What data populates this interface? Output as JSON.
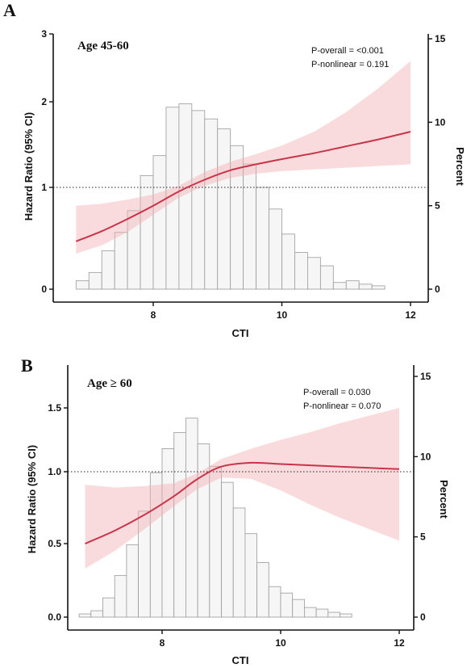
{
  "chart_data": [
    {
      "type": "line",
      "panel_letter": "A",
      "title": "Age 45-60",
      "xlabel": "CTI",
      "ylabel": "Hazard Ratio (95% CI)",
      "y2label": "Percent",
      "xlim": [
        6.7,
        12.3
      ],
      "x_ticks": [
        8,
        10,
        12
      ],
      "y_ticks": [
        0,
        1,
        2,
        3
      ],
      "y_tick_labels": [
        "0",
        "1",
        "2",
        "3"
      ],
      "y2_ticks": [
        0,
        5,
        10,
        15
      ],
      "y2_tick_labels": [
        "0",
        "5",
        "10",
        "15"
      ],
      "annotations": [
        "P-overall = <0.001",
        "P-nonlinear = 0.191"
      ],
      "reference_line": 1,
      "histogram": {
        "bin_start": 6.8,
        "bin_width": 0.2,
        "percent": [
          0.5,
          1.0,
          2.3,
          3.4,
          4.7,
          6.8,
          8.0,
          10.9,
          11.1,
          10.7,
          10.2,
          9.6,
          8.6,
          7.5,
          6.1,
          4.8,
          3.3,
          2.2,
          1.9,
          1.4,
          0.4,
          0.5,
          0.3,
          0.2
        ]
      },
      "hr_curve": {
        "x": [
          6.8,
          7.2,
          7.6,
          8.0,
          8.4,
          8.8,
          9.2,
          9.6,
          10.0,
          10.5,
          11.0,
          11.5,
          12.0
        ],
        "hr": [
          0.47,
          0.57,
          0.69,
          0.82,
          0.96,
          1.09,
          1.2,
          1.27,
          1.33,
          1.4,
          1.48,
          1.56,
          1.65
        ],
        "lower": [
          0.35,
          0.43,
          0.56,
          0.73,
          0.9,
          1.02,
          1.11,
          1.16,
          1.19,
          1.21,
          1.23,
          1.25,
          1.27
        ],
        "upper": [
          0.82,
          0.84,
          0.88,
          0.93,
          1.02,
          1.18,
          1.3,
          1.39,
          1.49,
          1.65,
          1.88,
          2.2,
          2.6
        ]
      }
    },
    {
      "type": "line",
      "panel_letter": "B",
      "title": "Age ≥ 60",
      "xlabel": "CTI",
      "ylabel": "Hazard Ratio (95% CI)",
      "y2label": "Percent",
      "xlim": [
        6.6,
        12.1
      ],
      "x_ticks": [
        8,
        10,
        12
      ],
      "y_ticks": [
        0.0,
        0.5,
        1.0,
        1.5
      ],
      "y_tick_labels": [
        "0.0",
        "0.5",
        "1.0",
        "1.5"
      ],
      "y2_ticks": [
        0,
        5,
        10,
        15
      ],
      "y2_tick_labels": [
        "0",
        "5",
        "10",
        "15"
      ],
      "annotations": [
        "P-overall = 0.030",
        "P-nonlinear = 0.070"
      ],
      "reference_line": 1,
      "histogram": {
        "bin_start": 6.6,
        "bin_width": 0.2,
        "percent": [
          0.2,
          0.4,
          1.2,
          2.6,
          4.5,
          6.6,
          9.0,
          10.5,
          11.5,
          12.4,
          10.8,
          9.4,
          8.4,
          6.8,
          5.2,
          3.4,
          1.9,
          1.5,
          1.1,
          0.6,
          0.5,
          0.3,
          0.2
        ]
      },
      "hr_curve": {
        "x": [
          6.7,
          7.2,
          7.7,
          8.2,
          8.6,
          9.0,
          9.5,
          10.0,
          10.5,
          11.0,
          11.5,
          12.0
        ],
        "hr": [
          0.5,
          0.59,
          0.7,
          0.83,
          0.95,
          1.04,
          1.07,
          1.06,
          1.05,
          1.04,
          1.03,
          1.02
        ],
        "lower": [
          0.33,
          0.45,
          0.6,
          0.76,
          0.88,
          0.96,
          0.95,
          0.87,
          0.77,
          0.68,
          0.6,
          0.52
        ],
        "upper": [
          0.91,
          0.89,
          0.9,
          0.92,
          0.99,
          1.1,
          1.18,
          1.25,
          1.31,
          1.38,
          1.44,
          1.5
        ]
      }
    }
  ]
}
